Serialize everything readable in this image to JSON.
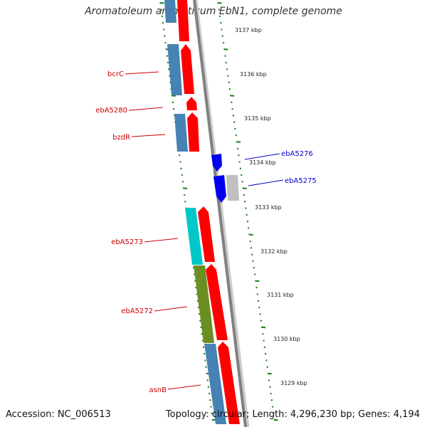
{
  "title": "Aromatoleum aromaticum EbN1, complete genome",
  "footer": {
    "accession": "Accession: NC_006513",
    "topology": "Topology: circular; Length: 4,296,230 bp; Genes: 4,194"
  },
  "colors": {
    "forward_gene": "#ff0000",
    "reverse_gene": "#0000ee",
    "backbone": "#808080",
    "ticks": "#1a7a1a",
    "label_forward": "#cc0000",
    "label_reverse": "#0000cc",
    "cog_steelblue": "#4682b4",
    "cog_cyan": "#00c8c8",
    "cog_olive": "#6b8e23",
    "cog_grey": "#c0c0c0"
  },
  "kbp_labels": [
    "3137 kbp",
    "3136 kbp",
    "3135 kbp",
    "3134 kbp",
    "3133 kbp",
    "3132 kbp",
    "3131 kbp",
    "3130 kbp",
    "3129 kbp"
  ],
  "gene_labels_left": [
    "bcrC",
    "ebA5280",
    "bzdR",
    "ebA5273",
    "ebA5272",
    "asnB"
  ],
  "gene_labels_right": [
    "ebA5276",
    "ebA5275"
  ]
}
